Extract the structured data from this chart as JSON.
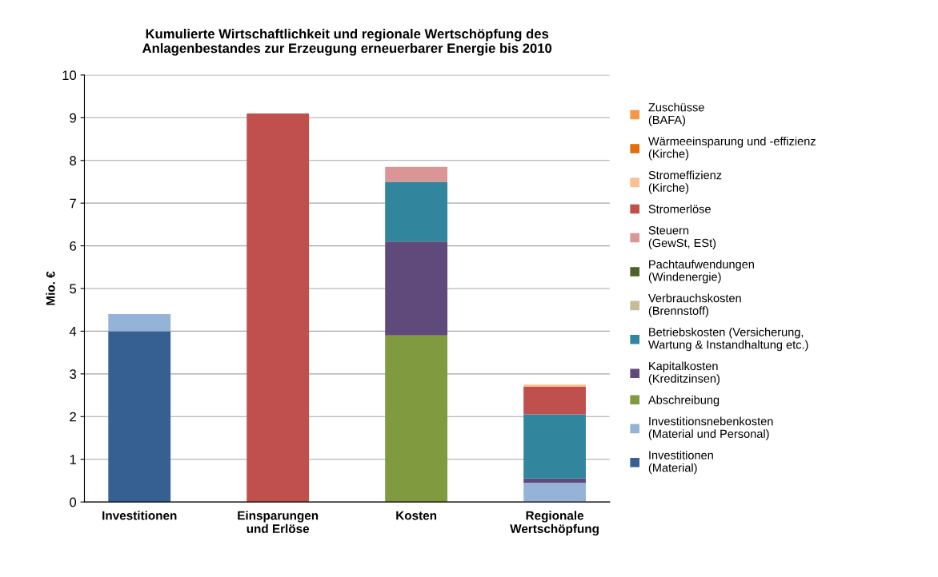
{
  "chart_data": {
    "type": "bar",
    "stacked": true,
    "title": "Kumulierte Wirtschaftlichkeit und regionale Wertschöpfung des\nAnlagenbestandes zur Erzeugung erneuerbarer Energie bis 2010",
    "ylabel": "Mio. €",
    "categories": [
      "Investitionen",
      "Einsparungen\nund Erlöse",
      "Kosten",
      "Regionale\nWertschöpfung"
    ],
    "ylim": [
      0,
      10
    ],
    "yticks": [
      0,
      1,
      2,
      3,
      4,
      5,
      6,
      7,
      8,
      9,
      10
    ],
    "grid": "y",
    "legend": "right",
    "series": [
      {
        "name": "Investitionen\n(Material)",
        "color": "#376092",
        "values": [
          4.0,
          null,
          null,
          null
        ]
      },
      {
        "name": "Investitionsnebenkosten\n(Material und Personal)",
        "color": "#95b3d7",
        "values": [
          0.4,
          null,
          null,
          0.45
        ]
      },
      {
        "name": "Abschreibung",
        "color": "#7f9a3f",
        "values": [
          null,
          null,
          3.9,
          null
        ]
      },
      {
        "name": "Kapitalkosten\n(Kreditzinsen)",
        "color": "#604a7b",
        "values": [
          null,
          null,
          2.2,
          0.1
        ]
      },
      {
        "name": "Betriebskosten (Versicherung,\nWartung & Instandhaltung etc.)",
        "color": "#31859c",
        "values": [
          null,
          null,
          1.4,
          1.5
        ]
      },
      {
        "name": "Verbrauchskosten\n(Brennstoff)",
        "color": "#c4bd97",
        "values": [
          null,
          null,
          null,
          null
        ]
      },
      {
        "name": "Pachtaufwendungen\n(Windenergie)",
        "color": "#4f6228",
        "values": [
          null,
          null,
          null,
          null
        ]
      },
      {
        "name": "Steuern\n(GewSt, ESt)",
        "color": "#d99694",
        "values": [
          null,
          null,
          0.35,
          null
        ]
      },
      {
        "name": "Stromerlöse",
        "color": "#c0504d",
        "values": [
          null,
          9.1,
          null,
          0.65
        ]
      },
      {
        "name": "Stromeffizienz\n(Kirche)",
        "color": "#fac090",
        "values": [
          null,
          null,
          null,
          0.05
        ]
      },
      {
        "name": "Wärmeeinsparung und -effizienz\n(Kirche)",
        "color": "#e46c0a",
        "values": [
          null,
          null,
          null,
          null
        ]
      },
      {
        "name": "Zuschüsse\n(BAFA)",
        "color": "#f79646",
        "values": [
          null,
          null,
          null,
          null
        ]
      }
    ]
  }
}
